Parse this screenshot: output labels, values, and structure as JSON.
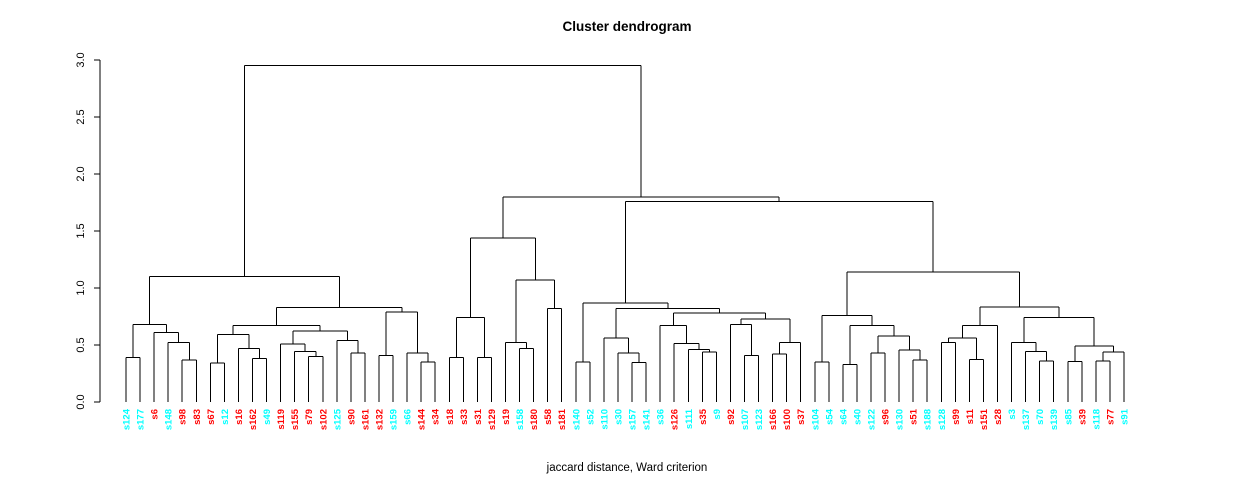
{
  "title": "Cluster dendrogram",
  "xlabel": "jaccard distance, Ward criterion",
  "chart_data": {
    "type": "dendrogram",
    "title": "Cluster dendrogram",
    "xlabel": "jaccard distance, Ward criterion",
    "ylabel": "",
    "ylim": [
      0,
      3
    ],
    "yticks": [
      "0.0",
      "0.5",
      "1.0",
      "1.5",
      "2.0",
      "2.5",
      "3.0"
    ],
    "grid": false,
    "line_color": "#000000",
    "label_colors": {
      "red": "#ff0000",
      "cyan": "#00ffff"
    },
    "leaves": [
      {
        "label": "s124",
        "color": "cyan"
      },
      {
        "label": "s177",
        "color": "cyan"
      },
      {
        "label": "s6",
        "color": "red"
      },
      {
        "label": "s148",
        "color": "cyan"
      },
      {
        "label": "s98",
        "color": "red"
      },
      {
        "label": "s83",
        "color": "red"
      },
      {
        "label": "s67",
        "color": "red"
      },
      {
        "label": "s12",
        "color": "cyan"
      },
      {
        "label": "s16",
        "color": "red"
      },
      {
        "label": "s162",
        "color": "red"
      },
      {
        "label": "s49",
        "color": "cyan"
      },
      {
        "label": "s119",
        "color": "red"
      },
      {
        "label": "s155",
        "color": "red"
      },
      {
        "label": "s79",
        "color": "red"
      },
      {
        "label": "s102",
        "color": "red"
      },
      {
        "label": "s125",
        "color": "cyan"
      },
      {
        "label": "s90",
        "color": "red"
      },
      {
        "label": "s161",
        "color": "red"
      },
      {
        "label": "s132",
        "color": "red"
      },
      {
        "label": "s159",
        "color": "cyan"
      },
      {
        "label": "s66",
        "color": "cyan"
      },
      {
        "label": "s144",
        "color": "red"
      },
      {
        "label": "s34",
        "color": "red"
      },
      {
        "label": "s18",
        "color": "red"
      },
      {
        "label": "s33",
        "color": "red"
      },
      {
        "label": "s31",
        "color": "red"
      },
      {
        "label": "s129",
        "color": "red"
      },
      {
        "label": "s19",
        "color": "red"
      },
      {
        "label": "s158",
        "color": "cyan"
      },
      {
        "label": "s180",
        "color": "red"
      },
      {
        "label": "s58",
        "color": "red"
      },
      {
        "label": "s181",
        "color": "red"
      },
      {
        "label": "s140",
        "color": "cyan"
      },
      {
        "label": "s52",
        "color": "cyan"
      },
      {
        "label": "s110",
        "color": "cyan"
      },
      {
        "label": "s30",
        "color": "cyan"
      },
      {
        "label": "s157",
        "color": "cyan"
      },
      {
        "label": "s141",
        "color": "cyan"
      },
      {
        "label": "s36",
        "color": "cyan"
      },
      {
        "label": "s126",
        "color": "red"
      },
      {
        "label": "s111",
        "color": "cyan"
      },
      {
        "label": "s35",
        "color": "red"
      },
      {
        "label": "s9",
        "color": "cyan"
      },
      {
        "label": "s92",
        "color": "red"
      },
      {
        "label": "s107",
        "color": "cyan"
      },
      {
        "label": "s123",
        "color": "cyan"
      },
      {
        "label": "s166",
        "color": "red"
      },
      {
        "label": "s100",
        "color": "red"
      },
      {
        "label": "s37",
        "color": "red"
      },
      {
        "label": "s104",
        "color": "cyan"
      },
      {
        "label": "s54",
        "color": "cyan"
      },
      {
        "label": "s64",
        "color": "cyan"
      },
      {
        "label": "s40",
        "color": "cyan"
      },
      {
        "label": "s122",
        "color": "cyan"
      },
      {
        "label": "s96",
        "color": "red"
      },
      {
        "label": "s130",
        "color": "cyan"
      },
      {
        "label": "s51",
        "color": "red"
      },
      {
        "label": "s188",
        "color": "cyan"
      },
      {
        "label": "s128",
        "color": "cyan"
      },
      {
        "label": "s99",
        "color": "red"
      },
      {
        "label": "s11",
        "color": "red"
      },
      {
        "label": "s151",
        "color": "red"
      },
      {
        "label": "s28",
        "color": "red"
      },
      {
        "label": "s3",
        "color": "cyan"
      },
      {
        "label": "s137",
        "color": "cyan"
      },
      {
        "label": "s70",
        "color": "cyan"
      },
      {
        "label": "s139",
        "color": "cyan"
      },
      {
        "label": "s85",
        "color": "cyan"
      },
      {
        "label": "s39",
        "color": "red"
      },
      {
        "label": "s118",
        "color": "cyan"
      },
      {
        "label": "s77",
        "color": "red"
      },
      {
        "label": "s91",
        "color": "cyan"
      }
    ],
    "tree": [
      2.95,
      [
        1.1,
        [
          0.68,
          [
            0.39,
            0,
            1
          ],
          [
            0.61,
            2,
            [
              0.52,
              3,
              [
                0.37,
                4,
                5
              ]
            ]
          ]
        ],
        [
          0.83,
          [
            0.67,
            [
              0.59,
              [
                0.34,
                6,
                7
              ],
              [
                0.47,
                8,
                [
                  0.38,
                  9,
                  10
                ]
              ]
            ],
            [
              0.625,
              [
                0.51,
                11,
                [
                  0.445,
                  12,
                  [
                    0.4,
                    13,
                    14
                  ]
                ]
              ],
              [
                0.54,
                15,
                [
                  0.43,
                  16,
                  17
                ]
              ]
            ]
          ],
          [
            0.79,
            [
              0.41,
              18,
              19
            ],
            [
              0.43,
              20,
              [
                0.35,
                21,
                22
              ]
            ]
          ]
        ]
      ],
      [
        1.8,
        [
          1.44,
          [
            0.74,
            [
              0.39,
              23,
              24
            ],
            [
              0.39,
              25,
              26
            ]
          ],
          [
            1.07,
            [
              0.52,
              27,
              [
                0.47,
                28,
                29
              ]
            ],
            [
              0.82,
              30,
              31
            ]
          ]
        ],
        [
          1.76,
          [
            0.87,
            [
              0.35,
              32,
              33
            ],
            [
              0.82,
              [
                0.56,
                34,
                [
                  0.43,
                  35,
                  [
                    0.345,
                    36,
                    37
                  ]
                ]
              ],
              [
                0.78,
                [
                  0.67,
                  38,
                  [
                    0.515,
                    39,
                    [
                      0.46,
                      40,
                      [
                        0.44,
                        41,
                        42
                      ]
                    ]
                  ]
                ],
                [
                  0.73,
                  [
                    0.68,
                    43,
                    [
                      0.41,
                      44,
                      45
                    ]
                  ],
                  [
                    0.52,
                    [
                      0.42,
                      46,
                      47
                    ],
                    48
                  ]
                ]
              ]
            ]
          ],
          [
            1.14,
            [
              0.76,
              [
                0.35,
                49,
                50
              ],
              [
                0.67,
                [
                  0.33,
                  51,
                  52
                ],
                [
                  0.58,
                  [
                    0.43,
                    53,
                    54
                  ],
                  [
                    0.455,
                    55,
                    [
                      0.37,
                      56,
                      57
                    ]
                  ]
                ]
              ]
            ],
            [
              0.835,
              [
                0.67,
                [
                  0.56,
                  [
                    0.52,
                    58,
                    59
                  ],
                  [
                    0.375,
                    60,
                    61
                  ]
                ],
                62
              ],
              [
                0.74,
                [
                  0.52,
                  63,
                  [
                    0.445,
                    64,
                    [
                      0.36,
                      65,
                      66
                    ]
                  ]
                ],
                [
                  0.49,
                  [
                    0.355,
                    67,
                    68
                  ],
                  [
                    0.44,
                    [
                      0.36,
                      69,
                      70
                    ],
                    71
                  ]
                ]
              ]
            ]
          ]
        ]
      ]
    ]
  }
}
